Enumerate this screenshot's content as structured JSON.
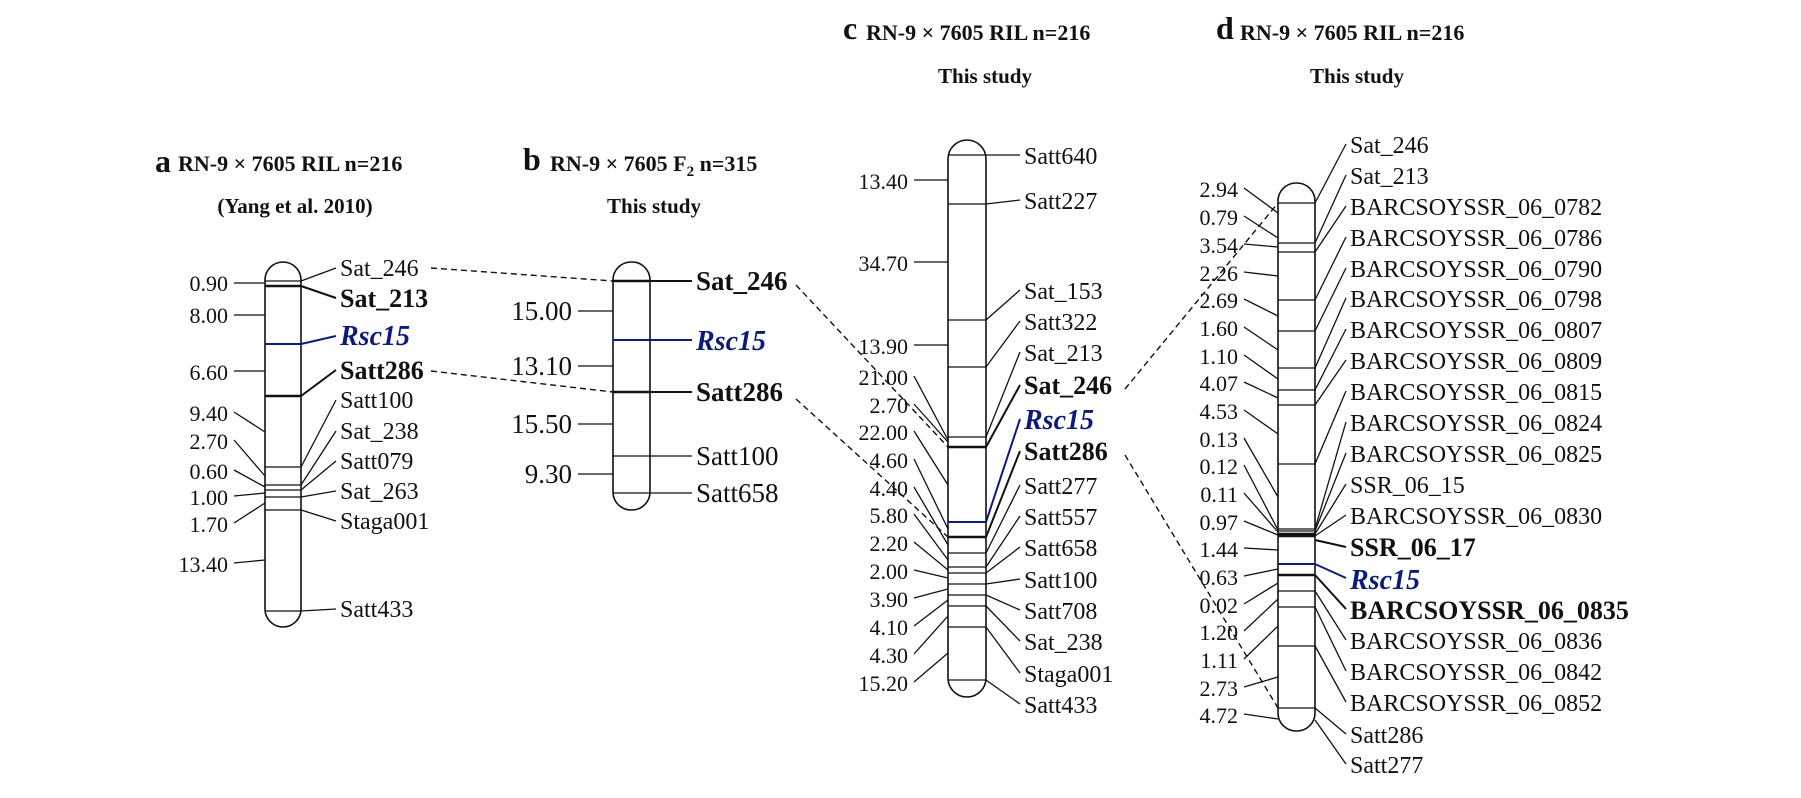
{
  "colors": {
    "gene": "#0b1b7c",
    "ink": "#111111"
  },
  "panels": [
    {
      "letter": "a",
      "title": "RN-9 × 7605 RIL n=216",
      "subtitle": "(Yang et al. 2010)",
      "distances": [
        "0.90",
        "8.00",
        "6.60",
        "9.40",
        "2.70",
        "0.60",
        "1.00",
        "1.70",
        "13.40"
      ],
      "markers": [
        "Sat_246",
        "Sat_213",
        "Rsc15",
        "Satt286",
        "Satt100",
        "Sat_238",
        "Satt079",
        "Sat_263",
        "Staga001",
        "Satt433"
      ]
    },
    {
      "letter": "b",
      "title_pre": "RN-9 × 7605 F",
      "title_sub": "2",
      "title_post": " n=315",
      "subtitle": "This study",
      "distances": [
        "15.00",
        "13.10",
        "15.50",
        "9.30"
      ],
      "markers": [
        "Sat_246",
        "Rsc15",
        "Satt286",
        "Satt100",
        "Satt658"
      ]
    },
    {
      "letter": "c",
      "title": "RN-9 × 7605 RIL n=216",
      "subtitle": "This study",
      "distances": [
        "13.40",
        "34.70",
        "13.90",
        "21.00",
        "2.70",
        "22.00",
        "4.60",
        "4.40",
        "5.80",
        "2.20",
        "2.00",
        "3.90",
        "4.10",
        "4.30",
        "15.20"
      ],
      "markers": [
        "Satt640",
        "Satt227",
        "Sat_153",
        "Satt322",
        "Sat_213",
        "Sat_246",
        "Rsc15",
        "Satt286",
        "Satt277",
        "Satt557",
        "Satt658",
        "Satt100",
        "Satt708",
        "Sat_238",
        "Staga001",
        "Satt433"
      ]
    },
    {
      "letter": "d",
      "title": "RN-9 × 7605 RIL n=216",
      "subtitle": "This study",
      "distances": [
        "2.94",
        "0.79",
        "3.54",
        "2.26",
        "2.69",
        "1.60",
        "1.10",
        "4.07",
        "4.53",
        "0.13",
        "0.12",
        "0.11",
        "0.97",
        "1.44",
        "0.63",
        "0.02",
        "1.20",
        "1.11",
        "2.73",
        "4.72"
      ],
      "markers": [
        "Sat_246",
        "Sat_213",
        "BARCSOYSSR_06_0782",
        "BARCSOYSSR_06_0786",
        "BARCSOYSSR_06_0790",
        "BARCSOYSSR_06_0798",
        "BARCSOYSSR_06_0807",
        "BARCSOYSSR_06_0809",
        "BARCSOYSSR_06_0815",
        "BARCSOYSSR_06_0824",
        "BARCSOYSSR_06_0825",
        "SSR_06_15",
        "BARCSOYSSR_06_0830",
        "SSR_06_17",
        "Rsc15",
        "BARCSOYSSR_06_0835",
        "BARCSOYSSR_06_0836",
        "BARCSOYSSR_06_0842",
        "BARCSOYSSR_06_0852",
        "Satt286",
        "Satt277"
      ]
    }
  ]
}
